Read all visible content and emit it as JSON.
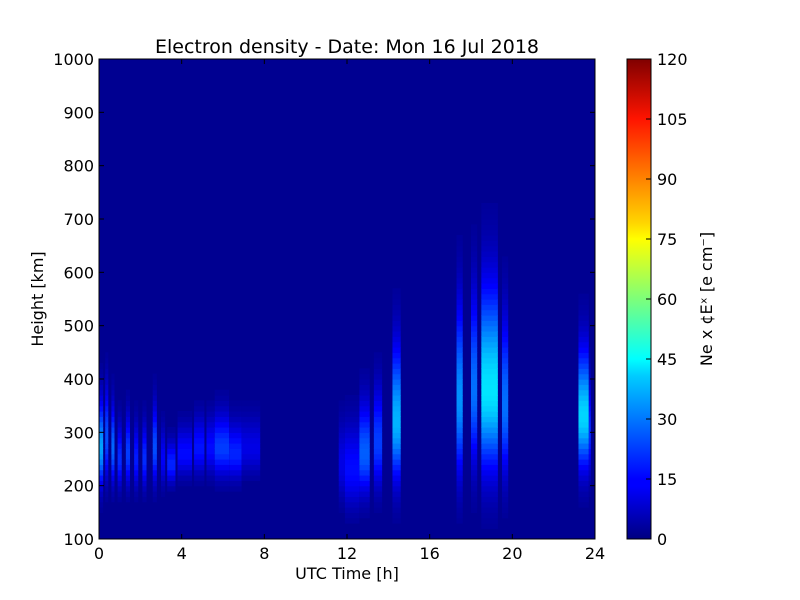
{
  "chart_data": {
    "type": "heatmap",
    "title": "Electron density - Date: Mon 16 Jul 2018",
    "xlabel": "UTC Time [h]",
    "ylabel": "Height [km]",
    "colorbar_label": "Ne x ¢Eˣ [e cm⁻]",
    "xlim": [
      0,
      24
    ],
    "ylim": [
      100,
      1000
    ],
    "xticks": [
      "0",
      "4",
      "8",
      "12",
      "16",
      "20",
      "24"
    ],
    "yticks": [
      "100",
      "200",
      "300",
      "400",
      "500",
      "600",
      "700",
      "800",
      "900",
      "1000"
    ],
    "colorbar_range": [
      0,
      120
    ],
    "colorbar_ticks": [
      "0",
      "15",
      "30",
      "45",
      "60",
      "75",
      "90",
      "105",
      "120"
    ],
    "colormap": "jet",
    "background_value": 2,
    "grid": false,
    "heights_km": [
      100,
      150,
      200,
      250,
      300,
      350,
      400,
      450,
      500,
      550,
      600,
      650,
      700,
      750,
      800,
      850,
      900,
      950,
      1000
    ],
    "features": [
      {
        "t_start": 0.0,
        "t_end": 0.2,
        "peak_km": 270,
        "peak": 32,
        "width_km": 120
      },
      {
        "t_start": 0.3,
        "t_end": 0.45,
        "peak_km": 290,
        "peak": 22,
        "width_km": 130
      },
      {
        "t_start": 0.6,
        "t_end": 0.75,
        "peak_km": 270,
        "peak": 25,
        "width_km": 110
      },
      {
        "t_start": 0.9,
        "t_end": 1.1,
        "peak_km": 250,
        "peak": 18,
        "width_km": 90
      },
      {
        "t_start": 1.3,
        "t_end": 1.5,
        "peak_km": 260,
        "peak": 20,
        "width_km": 100
      },
      {
        "t_start": 1.7,
        "t_end": 1.9,
        "peak_km": 250,
        "peak": 16,
        "width_km": 90
      },
      {
        "t_start": 2.1,
        "t_end": 2.3,
        "peak_km": 250,
        "peak": 18,
        "width_km": 90
      },
      {
        "t_start": 2.6,
        "t_end": 2.8,
        "peak_km": 270,
        "peak": 22,
        "width_km": 110
      },
      {
        "t_start": 3.0,
        "t_end": 3.2,
        "peak_km": 250,
        "peak": 12,
        "width_km": 80
      },
      {
        "t_start": 3.3,
        "t_end": 3.7,
        "peak_km": 240,
        "peak": 17,
        "width_km": 60
      },
      {
        "t_start": 3.8,
        "t_end": 4.5,
        "peak_km": 260,
        "peak": 14,
        "width_km": 70
      },
      {
        "t_start": 4.6,
        "t_end": 5.1,
        "peak_km": 270,
        "peak": 15,
        "width_km": 80
      },
      {
        "t_start": 5.2,
        "t_end": 5.6,
        "peak_km": 270,
        "peak": 14,
        "width_km": 80
      },
      {
        "t_start": 5.6,
        "t_end": 6.3,
        "peak_km": 270,
        "peak": 20,
        "width_km": 90
      },
      {
        "t_start": 6.3,
        "t_end": 6.9,
        "peak_km": 260,
        "peak": 17,
        "width_km": 80
      },
      {
        "t_start": 6.9,
        "t_end": 7.8,
        "peak_km": 270,
        "peak": 10,
        "width_km": 80
      },
      {
        "t_start": 11.6,
        "t_end": 11.9,
        "peak_km": 240,
        "peak": 10,
        "width_km": 110
      },
      {
        "t_start": 11.9,
        "t_end": 12.6,
        "peak_km": 230,
        "peak": 14,
        "width_km": 120
      },
      {
        "t_start": 12.6,
        "t_end": 13.1,
        "peak_km": 260,
        "peak": 24,
        "width_km": 130
      },
      {
        "t_start": 13.3,
        "t_end": 13.7,
        "peak_km": 280,
        "peak": 20,
        "width_km": 140
      },
      {
        "t_start": 14.2,
        "t_end": 14.6,
        "peak_km": 320,
        "peak": 34,
        "width_km": 190
      },
      {
        "t_start": 17.3,
        "t_end": 17.6,
        "peak_km": 360,
        "peak": 30,
        "width_km": 240
      },
      {
        "t_start": 18.0,
        "t_end": 18.3,
        "peak_km": 380,
        "peak": 26,
        "width_km": 240
      },
      {
        "t_start": 18.5,
        "t_end": 19.3,
        "peak_km": 380,
        "peak": 40,
        "width_km": 260
      },
      {
        "t_start": 19.5,
        "t_end": 19.8,
        "peak_km": 350,
        "peak": 26,
        "width_km": 220
      },
      {
        "t_start": 23.2,
        "t_end": 23.7,
        "peak_km": 330,
        "peak": 38,
        "width_km": 170
      },
      {
        "t_start": 23.7,
        "t_end": 23.8,
        "peak_km": 300,
        "peak": 18,
        "width_km": 130
      }
    ]
  }
}
